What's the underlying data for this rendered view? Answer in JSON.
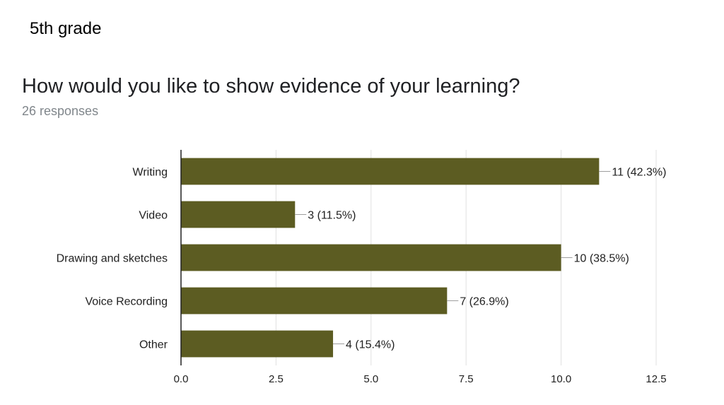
{
  "slide": {
    "grade_label": "5th grade",
    "question": "How would you like to show evidence of your learning?",
    "responses": "26 responses"
  },
  "colors": {
    "bar": "#5c5c22",
    "grid": "#e0e0e0",
    "axis": "#212121",
    "text": "#212121",
    "subtle": "#80868b"
  },
  "chart_data": {
    "type": "bar",
    "orientation": "horizontal",
    "title": "How would you like to show evidence of your learning?",
    "subtitle": "26 responses",
    "categories": [
      "Writing",
      "Video",
      "Drawing and sketches",
      "Voice Recording",
      "Other"
    ],
    "values": [
      11,
      3,
      10,
      7,
      4
    ],
    "data_labels": [
      "11 (42.3%)",
      "3 (11.5%)",
      "10 (38.5%)",
      "7 (26.9%)",
      "4 (15.4%)"
    ],
    "xlim": [
      0,
      12.5
    ],
    "xticks": [
      "0.0",
      "2.5",
      "5.0",
      "7.5",
      "10.0",
      "12.5"
    ],
    "grid": true,
    "legend": "none"
  }
}
